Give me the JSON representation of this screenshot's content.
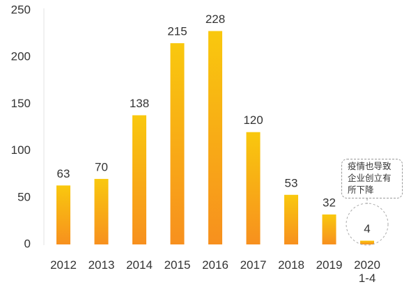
{
  "chart_data": {
    "type": "bar",
    "categories": [
      "2012",
      "2013",
      "2014",
      "2015",
      "2016",
      "2017",
      "2018",
      "2019",
      "2020\n1-4"
    ],
    "values": [
      63,
      70,
      138,
      215,
      228,
      120,
      53,
      32,
      4
    ],
    "gradient": [
      "#f9c80e",
      "#f7901e"
    ],
    "ylim": [
      0,
      250
    ],
    "yticks": [
      0,
      50,
      100,
      150,
      200,
      250
    ],
    "grid": false,
    "annotation": "疫情也导致企业创立有所下降"
  }
}
